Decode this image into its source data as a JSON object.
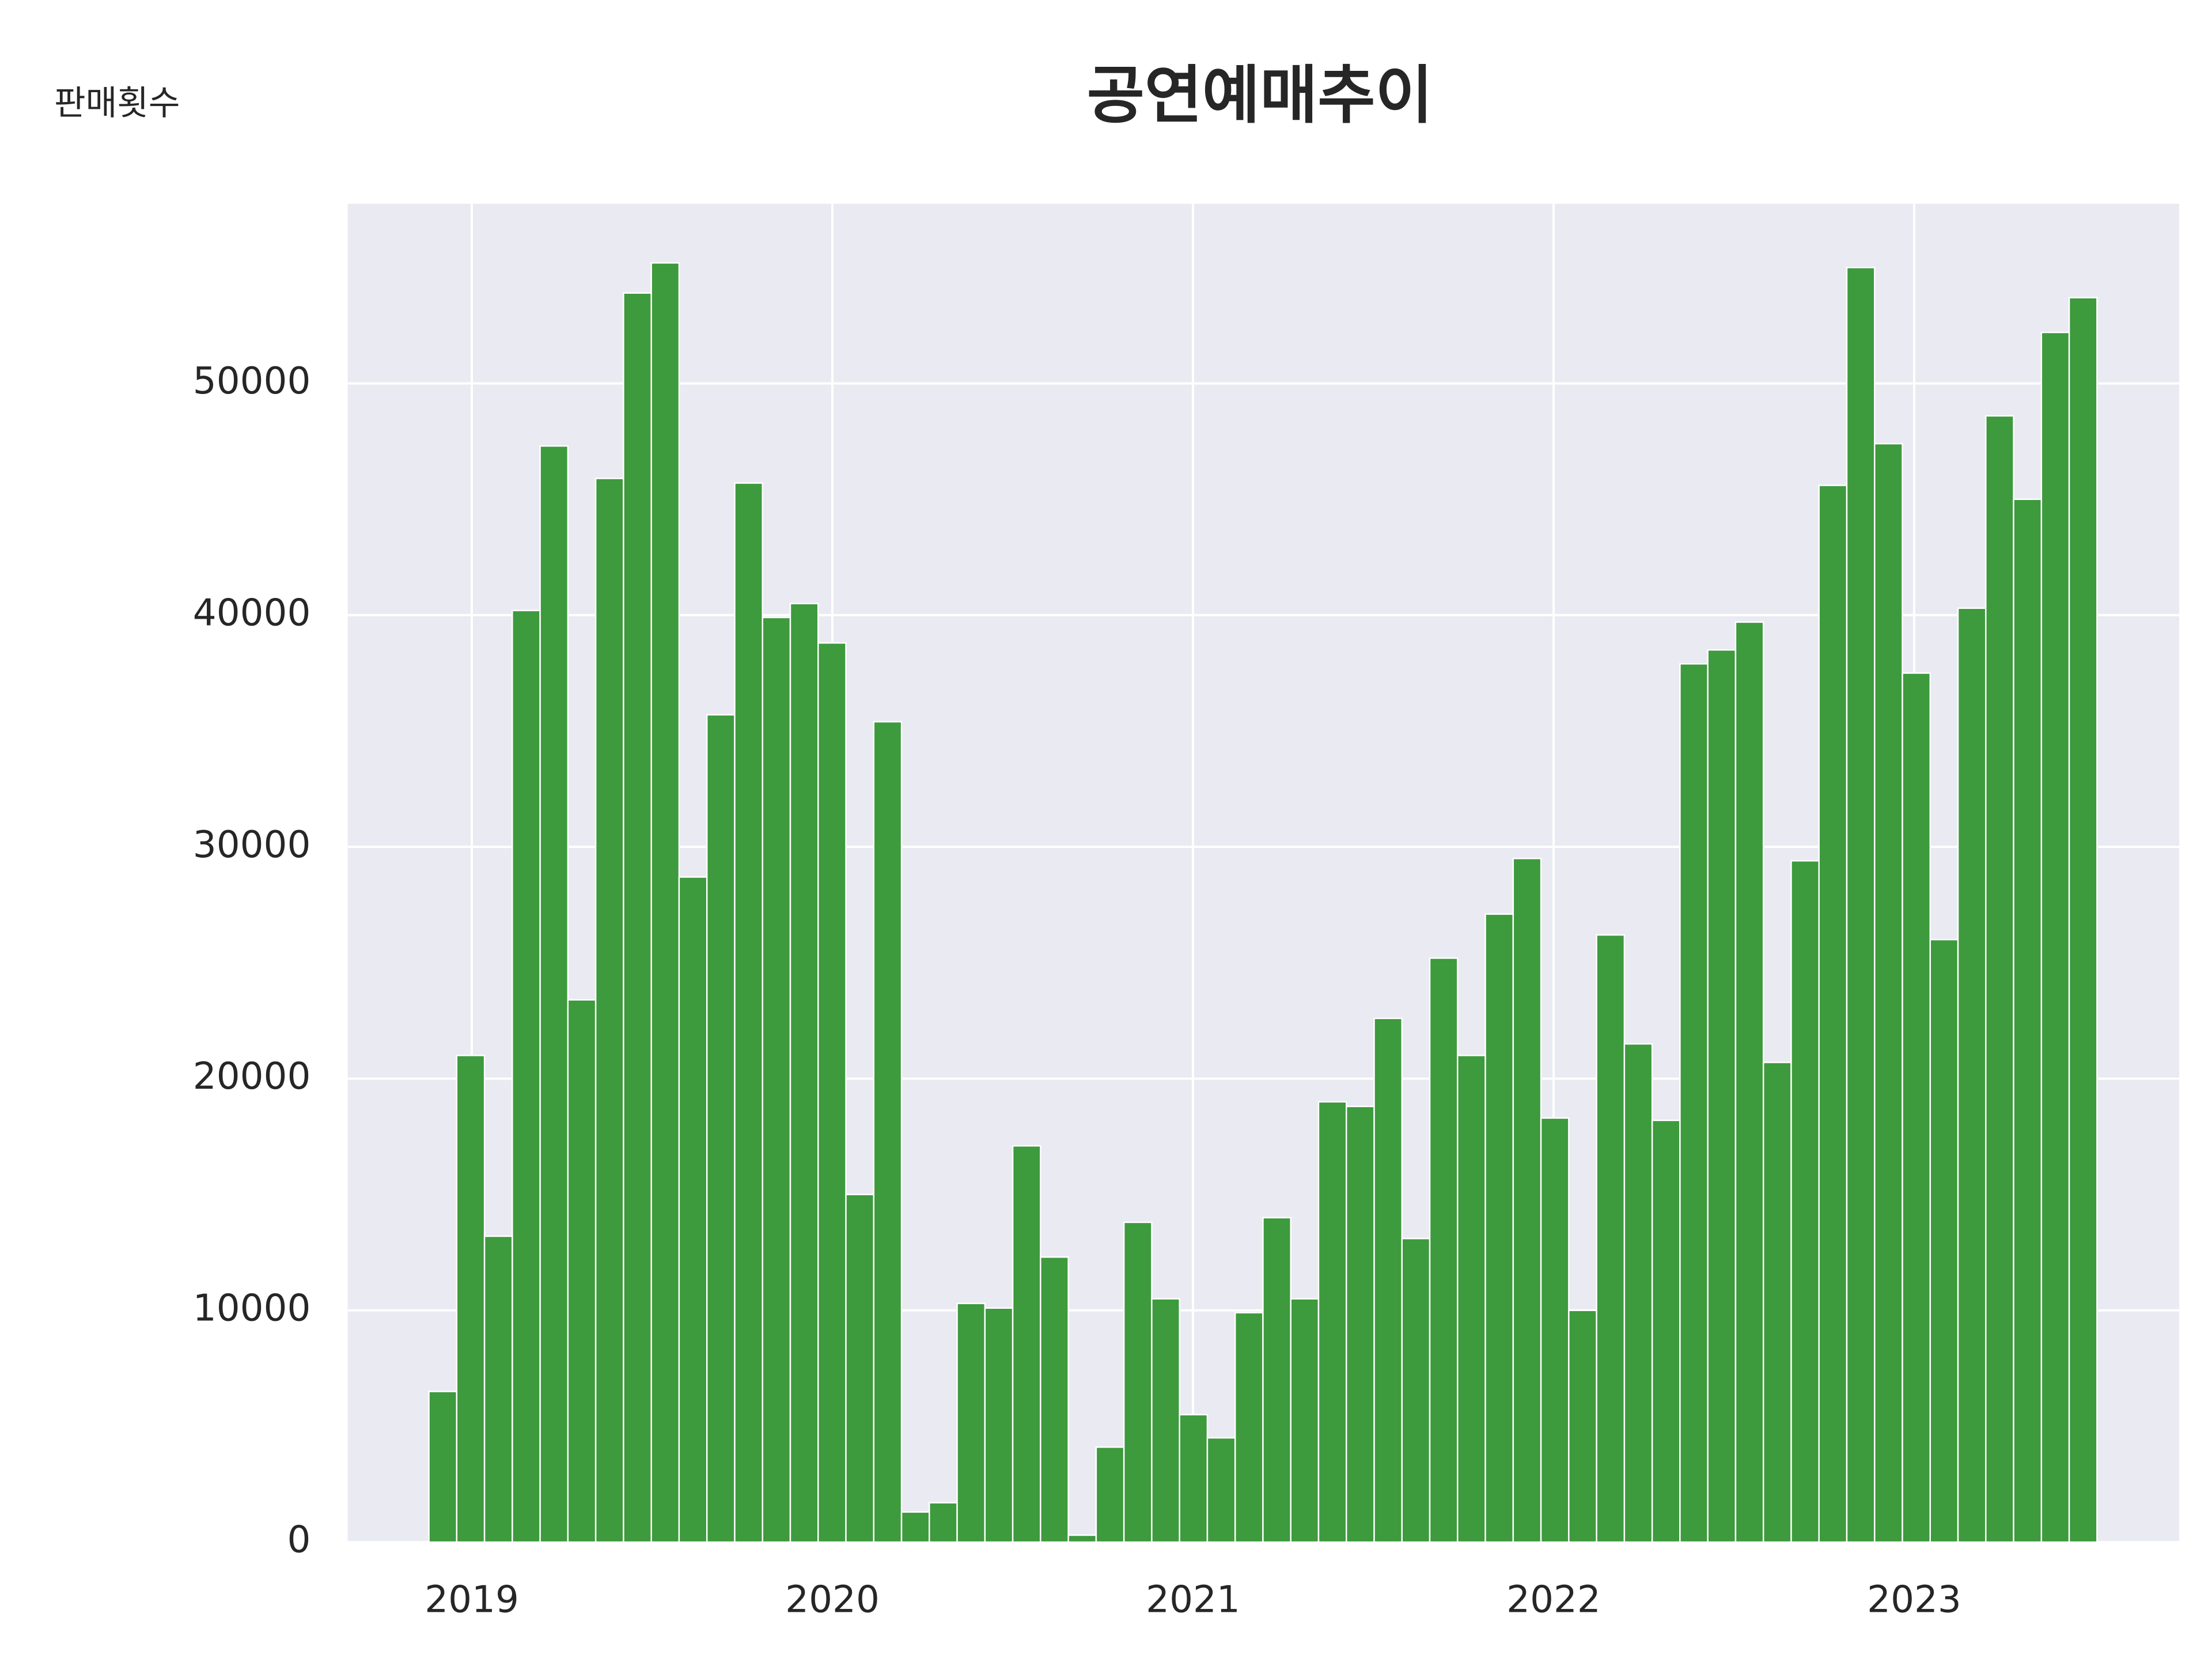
{
  "chart_data": {
    "type": "histogram",
    "title": "공연예매추이",
    "y_label": "판매횟수",
    "bins": [
      2018.881,
      2018.9581,
      2019.0352,
      2019.1123,
      2019.1894,
      2019.2665,
      2019.3436,
      2019.4207,
      2019.4978,
      2019.5749,
      2019.652,
      2019.7291,
      2019.8062,
      2019.8833,
      2019.9604,
      2020.0375,
      2020.1146,
      2020.1917,
      2020.2688,
      2020.3459,
      2020.423,
      2020.5001,
      2020.5772,
      2020.6543,
      2020.7314,
      2020.8085,
      2020.8856,
      2020.9627,
      2021.0398,
      2021.1169,
      2021.194,
      2021.2711,
      2021.3482,
      2021.4253,
      2021.5024,
      2021.5795,
      2021.6566,
      2021.7337,
      2021.8108,
      2021.8879,
      2021.965,
      2022.0421,
      2022.1192,
      2022.1963,
      2022.2734,
      2022.3505,
      2022.4276,
      2022.5047,
      2022.5818,
      2022.6589,
      2022.736,
      2022.8131,
      2022.8902,
      2022.9673,
      2023.0444,
      2023.1215,
      2023.1986,
      2023.2757,
      2023.3528,
      2023.4299,
      2023.507
    ],
    "counts": [
      6500,
      21000,
      13200,
      40200,
      47300,
      23400,
      45900,
      53900,
      55200,
      28700,
      35700,
      45700,
      39900,
      40500,
      38800,
      15000,
      35400,
      1300,
      1700,
      10300,
      10100,
      17100,
      12300,
      300,
      4100,
      13800,
      10500,
      5500,
      4500,
      9900,
      14000,
      10500,
      19000,
      18800,
      22600,
      13100,
      25200,
      21000,
      27100,
      29500,
      18300,
      10000,
      26200,
      21500,
      18200,
      37900,
      38500,
      39700,
      20700,
      29400,
      45600,
      55000,
      47400,
      37500,
      26000,
      40300,
      48600,
      45000,
      52200,
      53700
    ],
    "color": "#3d9a3d",
    "xlim": [
      2018.656,
      2023.735
    ],
    "xticks": [
      2019,
      2020,
      2021,
      2022,
      2023
    ],
    "ylim": [
      0,
      57750
    ],
    "yticks": [
      0,
      10000,
      20000,
      30000,
      40000,
      50000
    ],
    "grid": true
  }
}
